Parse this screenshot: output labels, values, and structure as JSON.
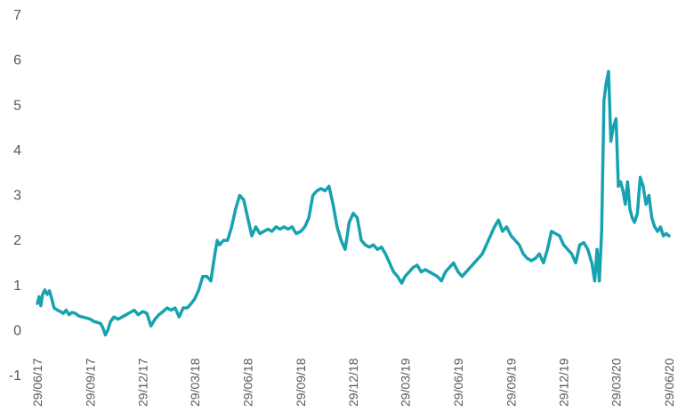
{
  "chart_data": {
    "type": "line",
    "title": "",
    "xlabel": "",
    "ylabel": "",
    "ylim": [
      -1,
      7
    ],
    "yticks": [
      -1,
      0,
      1,
      2,
      3,
      4,
      5,
      6,
      7
    ],
    "ytick_labels": [
      "-1",
      "0",
      "1",
      "2",
      "3",
      "4",
      "5",
      "6",
      "7"
    ],
    "xlim": [
      "2017-06-29",
      "2020-06-29"
    ],
    "xticks": [
      "2017-06-29",
      "2017-09-29",
      "2017-12-29",
      "2018-03-29",
      "2018-06-29",
      "2018-09-29",
      "2018-12-29",
      "2019-03-29",
      "2019-06-29",
      "2019-09-29",
      "2019-12-29",
      "2020-03-29",
      "2020-06-29"
    ],
    "xtick_labels": [
      "29/06/17",
      "29/09/17",
      "29/12/17",
      "29/03/18",
      "29/06/18",
      "29/09/18",
      "29/12/18",
      "29/03/19",
      "29/06/19",
      "29/09/19",
      "29/12/19",
      "29/03/20",
      "29/06/20"
    ],
    "grid": false,
    "line_color": "#17A2B0",
    "series": [
      {
        "points": [
          [
            "2017-06-29",
            0.6
          ],
          [
            "2017-07-02",
            0.75
          ],
          [
            "2017-07-05",
            0.55
          ],
          [
            "2017-07-08",
            0.8
          ],
          [
            "2017-07-12",
            0.9
          ],
          [
            "2017-07-16",
            0.8
          ],
          [
            "2017-07-20",
            0.88
          ],
          [
            "2017-07-24",
            0.7
          ],
          [
            "2017-07-28",
            0.5
          ],
          [
            "2017-08-03",
            0.45
          ],
          [
            "2017-08-08",
            0.42
          ],
          [
            "2017-08-13",
            0.38
          ],
          [
            "2017-08-18",
            0.45
          ],
          [
            "2017-08-23",
            0.35
          ],
          [
            "2017-08-28",
            0.4
          ],
          [
            "2017-09-03",
            0.38
          ],
          [
            "2017-09-09",
            0.32
          ],
          [
            "2017-09-15",
            0.3
          ],
          [
            "2017-09-21",
            0.28
          ],
          [
            "2017-09-29",
            0.25
          ],
          [
            "2017-10-05",
            0.2
          ],
          [
            "2017-10-11",
            0.18
          ],
          [
            "2017-10-17",
            0.15
          ],
          [
            "2017-10-21",
            0.05
          ],
          [
            "2017-10-25",
            -0.1
          ],
          [
            "2017-10-29",
            0.0
          ],
          [
            "2017-11-03",
            0.2
          ],
          [
            "2017-11-09",
            0.3
          ],
          [
            "2017-11-16",
            0.25
          ],
          [
            "2017-11-23",
            0.3
          ],
          [
            "2017-11-30",
            0.35
          ],
          [
            "2017-12-07",
            0.4
          ],
          [
            "2017-12-14",
            0.45
          ],
          [
            "2017-12-21",
            0.35
          ],
          [
            "2017-12-29",
            0.42
          ],
          [
            "2018-01-05",
            0.38
          ],
          [
            "2018-01-12",
            0.1
          ],
          [
            "2018-01-19",
            0.25
          ],
          [
            "2018-01-26",
            0.35
          ],
          [
            "2018-02-02",
            0.42
          ],
          [
            "2018-02-09",
            0.5
          ],
          [
            "2018-02-16",
            0.45
          ],
          [
            "2018-02-23",
            0.5
          ],
          [
            "2018-03-02",
            0.3
          ],
          [
            "2018-03-09",
            0.5
          ],
          [
            "2018-03-16",
            0.5
          ],
          [
            "2018-03-23",
            0.6
          ],
          [
            "2018-03-29",
            0.7
          ],
          [
            "2018-04-05",
            0.9
          ],
          [
            "2018-04-12",
            1.2
          ],
          [
            "2018-04-19",
            1.2
          ],
          [
            "2018-04-26",
            1.1
          ],
          [
            "2018-05-03",
            1.7
          ],
          [
            "2018-05-07",
            2.0
          ],
          [
            "2018-05-11",
            1.9
          ],
          [
            "2018-05-18",
            2.0
          ],
          [
            "2018-05-25",
            2.0
          ],
          [
            "2018-06-01",
            2.3
          ],
          [
            "2018-06-08",
            2.7
          ],
          [
            "2018-06-15",
            3.0
          ],
          [
            "2018-06-22",
            2.9
          ],
          [
            "2018-06-29",
            2.5
          ],
          [
            "2018-07-06",
            2.1
          ],
          [
            "2018-07-13",
            2.3
          ],
          [
            "2018-07-20",
            2.15
          ],
          [
            "2018-07-27",
            2.2
          ],
          [
            "2018-08-03",
            2.25
          ],
          [
            "2018-08-10",
            2.2
          ],
          [
            "2018-08-17",
            2.3
          ],
          [
            "2018-08-24",
            2.25
          ],
          [
            "2018-08-31",
            2.3
          ],
          [
            "2018-09-07",
            2.25
          ],
          [
            "2018-09-14",
            2.3
          ],
          [
            "2018-09-21",
            2.15
          ],
          [
            "2018-09-29",
            2.2
          ],
          [
            "2018-10-06",
            2.3
          ],
          [
            "2018-10-13",
            2.5
          ],
          [
            "2018-10-20",
            3.0
          ],
          [
            "2018-10-27",
            3.1
          ],
          [
            "2018-11-03",
            3.15
          ],
          [
            "2018-11-10",
            3.1
          ],
          [
            "2018-11-17",
            3.2
          ],
          [
            "2018-11-24",
            2.8
          ],
          [
            "2018-12-01",
            2.3
          ],
          [
            "2018-12-08",
            2.0
          ],
          [
            "2018-12-15",
            1.8
          ],
          [
            "2018-12-22",
            2.4
          ],
          [
            "2018-12-29",
            2.6
          ],
          [
            "2019-01-05",
            2.5
          ],
          [
            "2019-01-12",
            2.0
          ],
          [
            "2019-01-19",
            1.9
          ],
          [
            "2019-01-26",
            1.85
          ],
          [
            "2019-02-02",
            1.9
          ],
          [
            "2019-02-09",
            1.8
          ],
          [
            "2019-02-16",
            1.85
          ],
          [
            "2019-02-23",
            1.7
          ],
          [
            "2019-03-02",
            1.5
          ],
          [
            "2019-03-09",
            1.3
          ],
          [
            "2019-03-16",
            1.2
          ],
          [
            "2019-03-23",
            1.05
          ],
          [
            "2019-03-29",
            1.2
          ],
          [
            "2019-04-05",
            1.3
          ],
          [
            "2019-04-12",
            1.4
          ],
          [
            "2019-04-19",
            1.45
          ],
          [
            "2019-04-26",
            1.3
          ],
          [
            "2019-05-03",
            1.35
          ],
          [
            "2019-05-10",
            1.3
          ],
          [
            "2019-05-17",
            1.25
          ],
          [
            "2019-05-24",
            1.2
          ],
          [
            "2019-05-31",
            1.1
          ],
          [
            "2019-06-07",
            1.3
          ],
          [
            "2019-06-14",
            1.4
          ],
          [
            "2019-06-21",
            1.5
          ],
          [
            "2019-06-29",
            1.3
          ],
          [
            "2019-07-06",
            1.2
          ],
          [
            "2019-07-13",
            1.3
          ],
          [
            "2019-07-20",
            1.4
          ],
          [
            "2019-07-27",
            1.5
          ],
          [
            "2019-08-03",
            1.6
          ],
          [
            "2019-08-10",
            1.7
          ],
          [
            "2019-08-17",
            1.9
          ],
          [
            "2019-08-24",
            2.1
          ],
          [
            "2019-08-31",
            2.3
          ],
          [
            "2019-09-07",
            2.45
          ],
          [
            "2019-09-14",
            2.2
          ],
          [
            "2019-09-21",
            2.3
          ],
          [
            "2019-09-29",
            2.1
          ],
          [
            "2019-10-06",
            2.0
          ],
          [
            "2019-10-13",
            1.9
          ],
          [
            "2019-10-20",
            1.7
          ],
          [
            "2019-10-27",
            1.6
          ],
          [
            "2019-11-03",
            1.55
          ],
          [
            "2019-11-10",
            1.6
          ],
          [
            "2019-11-17",
            1.7
          ],
          [
            "2019-11-24",
            1.5
          ],
          [
            "2019-12-01",
            1.8
          ],
          [
            "2019-12-08",
            2.2
          ],
          [
            "2019-12-15",
            2.15
          ],
          [
            "2019-12-22",
            2.1
          ],
          [
            "2019-12-29",
            1.9
          ],
          [
            "2020-01-05",
            1.8
          ],
          [
            "2020-01-12",
            1.7
          ],
          [
            "2020-01-19",
            1.5
          ],
          [
            "2020-01-26",
            1.9
          ],
          [
            "2020-02-02",
            1.95
          ],
          [
            "2020-02-09",
            1.8
          ],
          [
            "2020-02-16",
            1.5
          ],
          [
            "2020-02-21",
            1.1
          ],
          [
            "2020-02-25",
            1.8
          ],
          [
            "2020-02-29",
            1.1
          ],
          [
            "2020-03-04",
            2.2
          ],
          [
            "2020-03-08",
            5.1
          ],
          [
            "2020-03-12",
            5.5
          ],
          [
            "2020-03-16",
            5.75
          ],
          [
            "2020-03-20",
            4.2
          ],
          [
            "2020-03-24",
            4.5
          ],
          [
            "2020-03-29",
            4.7
          ],
          [
            "2020-04-02",
            3.2
          ],
          [
            "2020-04-06",
            3.3
          ],
          [
            "2020-04-10",
            3.1
          ],
          [
            "2020-04-14",
            2.8
          ],
          [
            "2020-04-18",
            3.3
          ],
          [
            "2020-04-22",
            2.7
          ],
          [
            "2020-04-26",
            2.5
          ],
          [
            "2020-04-30",
            2.4
          ],
          [
            "2020-05-05",
            2.6
          ],
          [
            "2020-05-10",
            3.4
          ],
          [
            "2020-05-15",
            3.2
          ],
          [
            "2020-05-20",
            2.8
          ],
          [
            "2020-05-25",
            3.0
          ],
          [
            "2020-05-30",
            2.5
          ],
          [
            "2020-06-04",
            2.3
          ],
          [
            "2020-06-09",
            2.2
          ],
          [
            "2020-06-14",
            2.3
          ],
          [
            "2020-06-19",
            2.1
          ],
          [
            "2020-06-24",
            2.15
          ],
          [
            "2020-06-29",
            2.1
          ]
        ]
      }
    ]
  }
}
